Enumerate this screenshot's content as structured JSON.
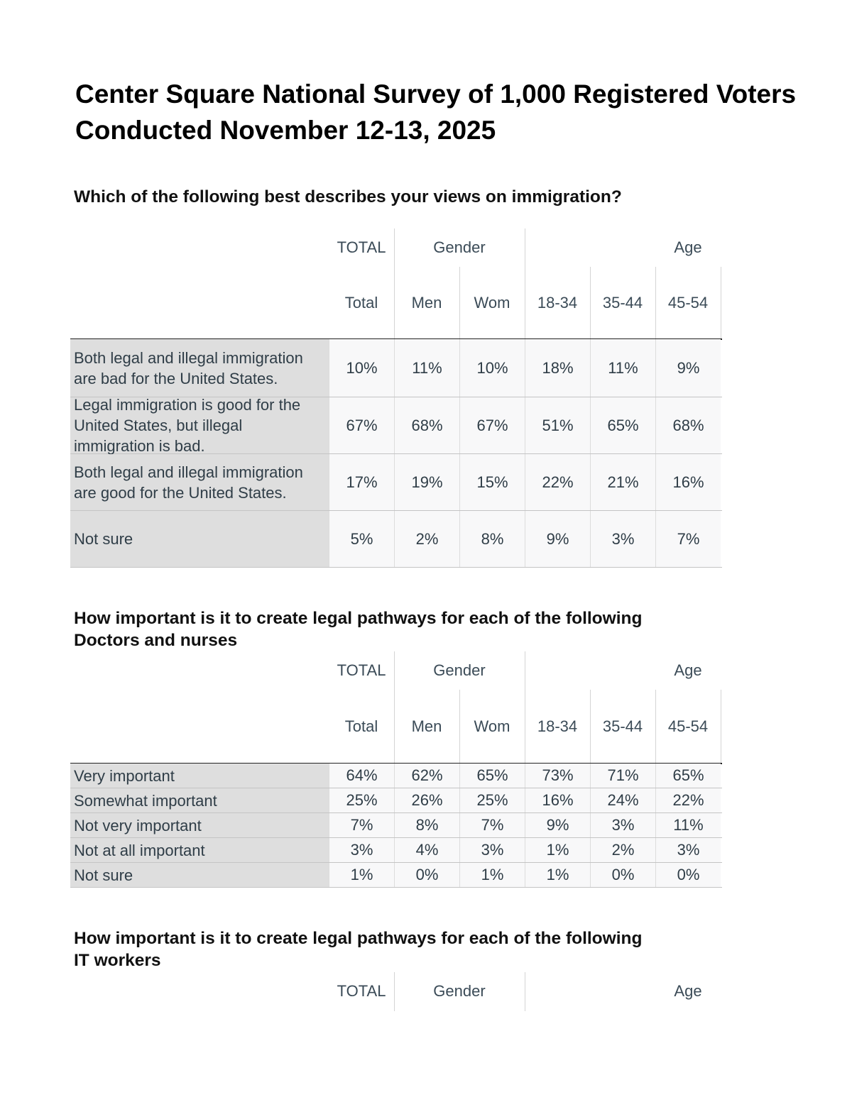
{
  "title": {
    "line1": "Center Square National Survey of 1,000 Registered Voters",
    "line2": "Conducted November 12-13, 2025"
  },
  "header_groups": {
    "total": "TOTAL",
    "gender": "Gender",
    "age": "Age"
  },
  "columns": [
    "Total",
    "Men",
    "Wom",
    "18-34",
    "35-44",
    "45-54"
  ],
  "tables": [
    {
      "question": "Which of the following best describes your views on immigration?",
      "subtitle": "",
      "rows": [
        {
          "label": "Both legal and illegal immigration are bad for the United States.",
          "values": [
            "10%",
            "11%",
            "10%",
            "18%",
            "11%",
            "9%"
          ]
        },
        {
          "label": "Legal immigration is good for the United States, but illegal immigration is bad.",
          "values": [
            "67%",
            "68%",
            "67%",
            "51%",
            "65%",
            "68%"
          ]
        },
        {
          "label": "Both legal and illegal immigration are good for the United States.",
          "values": [
            "17%",
            "19%",
            "15%",
            "22%",
            "21%",
            "16%"
          ]
        },
        {
          "label": "Not sure",
          "values": [
            "5%",
            "2%",
            "8%",
            "9%",
            "3%",
            "7%"
          ]
        }
      ]
    },
    {
      "question": "How important is it to create legal pathways for each of the following",
      "subtitle": "Doctors and nurses",
      "rows": [
        {
          "label": "Very important",
          "values": [
            "64%",
            "62%",
            "65%",
            "73%",
            "71%",
            "65%"
          ]
        },
        {
          "label": "Somewhat important",
          "values": [
            "25%",
            "26%",
            "25%",
            "16%",
            "24%",
            "22%"
          ]
        },
        {
          "label": "Not very important",
          "values": [
            "7%",
            "8%",
            "7%",
            "9%",
            "3%",
            "11%"
          ]
        },
        {
          "label": "Not at all important",
          "values": [
            "3%",
            "4%",
            "3%",
            "1%",
            "2%",
            "3%"
          ]
        },
        {
          "label": "Not sure",
          "values": [
            "1%",
            "0%",
            "1%",
            "1%",
            "0%",
            "0%"
          ]
        }
      ]
    },
    {
      "question": "How important is it to create legal pathways for each of the following",
      "subtitle": "IT workers",
      "rows": []
    }
  ],
  "colors": {
    "label_bg": "#dedede",
    "cell_bg": "#f8f8f9",
    "text": "#2f3d47"
  }
}
